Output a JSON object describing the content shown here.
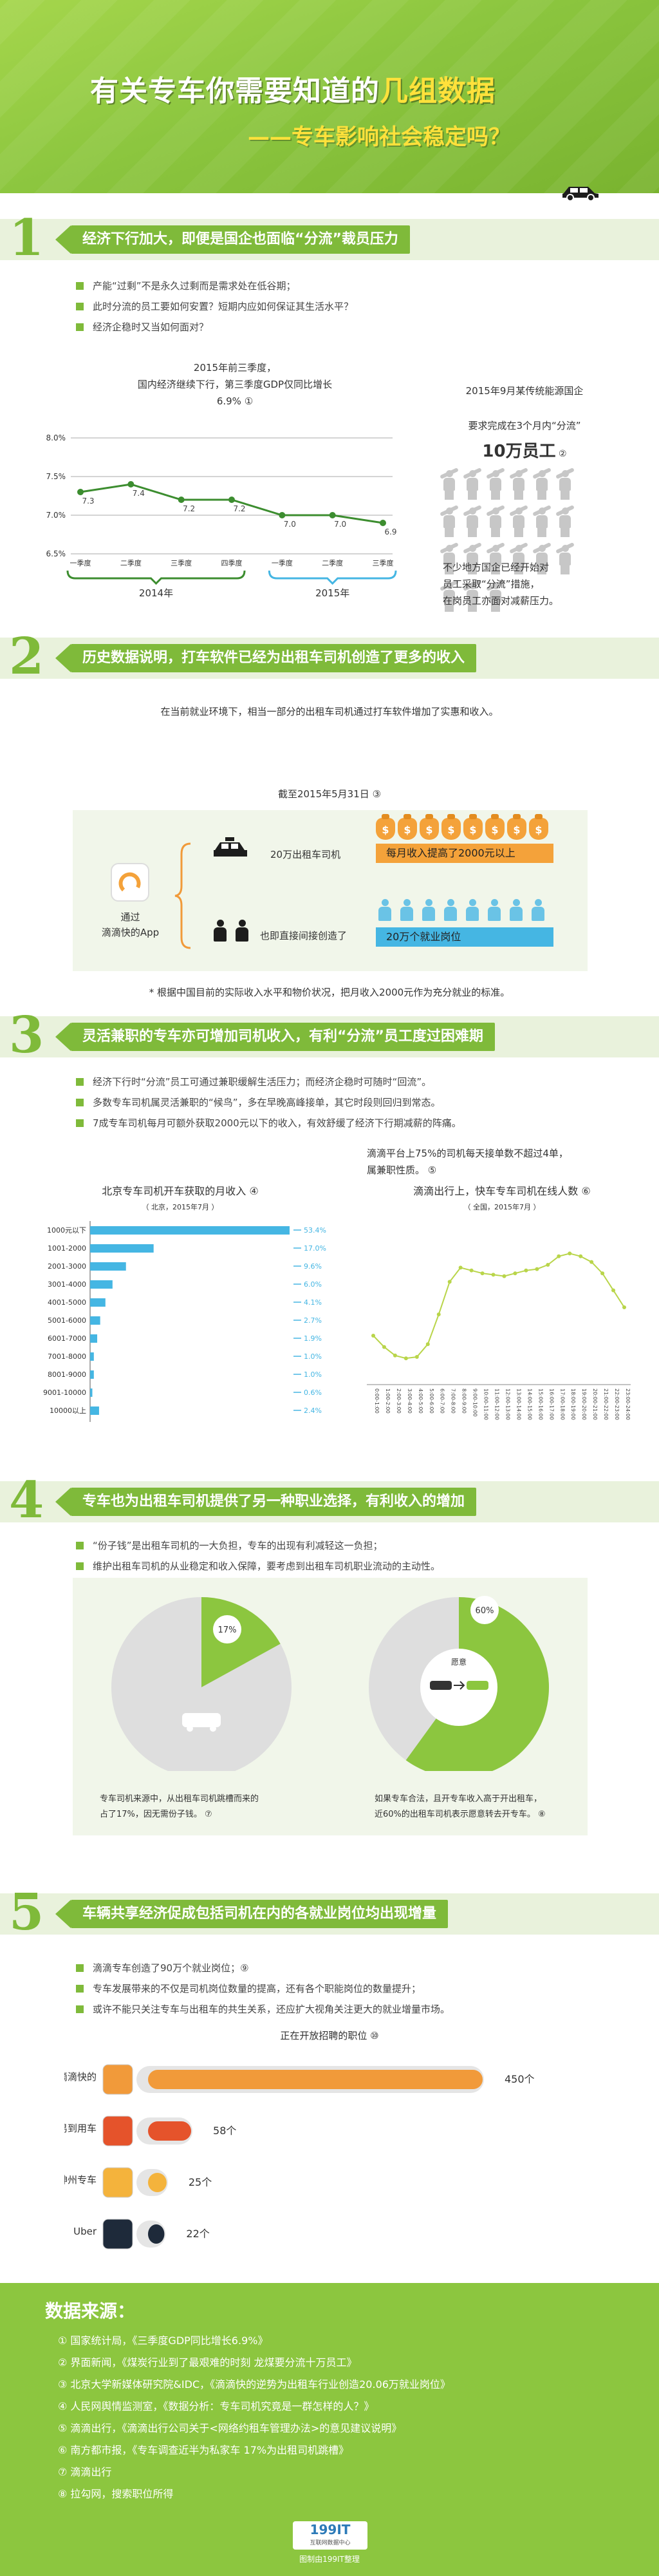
{
  "header": {
    "title_main": "有关专车你需要知道的",
    "title_highlight": "几组数据",
    "subtitle": "——专车影响社会稳定吗？"
  },
  "section1": {
    "num": "1",
    "title": "经济下行加大，即便是国企也面临“分流”裁员压力",
    "bullets": [
      "产能“过剩”不是永久过剩而是需求处在低谷期；",
      "此时分流的员工要如何安置？短期内应如何保证其生活水平？",
      "经济企稳时又当如何面对？"
    ],
    "chart_caption_line1": "2015年前三季度，",
    "chart_caption_line2": "国内经济继续下行，第三季度GDP仅同比增长6.9%",
    "right_title": "2015年9月某传统能源国企",
    "right_line1": "要求完成在3个月内“分流”",
    "right_big": "10万员工",
    "right_desc1": "不少地方国企已经开始对",
    "right_desc2": "员工采取“分流”措施，",
    "right_desc3": "在岗员工亦面对减薪压力。",
    "ref_mark": "①",
    "ref_mark2": "②"
  },
  "chart_data": {
    "type": "line",
    "categories": [
      "一季度",
      "二季度",
      "三季度",
      "四季度",
      "一季度",
      "二季度",
      "三季度"
    ],
    "groups": [
      "2014年",
      "2015年"
    ],
    "values": [
      7.3,
      7.4,
      7.2,
      7.2,
      7.0,
      7.0,
      6.9
    ],
    "labels": [
      "7.3",
      "7.4",
      "7.2",
      "7.2",
      "7.0",
      "7.0",
      "6.9"
    ],
    "yticks": [
      "8.0%",
      "7.5%",
      "7.0%",
      "6.5%"
    ],
    "ylim": [
      6.5,
      8.0
    ],
    "color": "#3c8d2f"
  },
  "section2": {
    "num": "2",
    "title": "历史数据说明，打车软件已经为出租车司机创造了更多的收入",
    "intro": "在当前就业环境下，相当一部分的出租车司机通过打车软件增加了实惠和收入。",
    "date": "截至2015年5月31日",
    "date_mark": "③",
    "app_label1": "通过",
    "app_label2": "滴滴快的App",
    "drivers_label": "20万出租车司机",
    "income_label": "每月收入提高了2000元以上",
    "jobs_label": "也即直接间接创造了",
    "jobs_value": "20万个就业岗位",
    "footnote": "* 根据中国目前的实际收入水平和物价状况，把月收入2000元作为充分就业的标准。"
  },
  "section3": {
    "num": "3",
    "title": "灵活兼职的专车亦可增加司机收入，有利“分流”员工度过困难期",
    "bullets": [
      "经济下行时“分流”员工可通过兼职缓解生活压力；而经济企稳时可随时“回流”。",
      "多数专车司机属灵活兼职的“候鸟”，多在早晚高峰接单，其它时段则回归到常态。",
      "7成专车司机每月可额外获取2000元以下的收入，有效舒缓了经济下行期减薪的阵痛。"
    ],
    "bar_title": "北京专车司机开车获取的月收入",
    "bar_title_mark": "④",
    "bar_sub": "（ 北京，2015年7月 ）",
    "bar_rows": [
      {
        "label": "1000元以下",
        "value": 53.4,
        "text": "53.4%"
      },
      {
        "label": "1001-2000",
        "value": 17.0,
        "text": "17.0%"
      },
      {
        "label": "2001-3000",
        "value": 9.6,
        "text": "9.6%"
      },
      {
        "label": "3001-4000",
        "value": 6.0,
        "text": "6.0%"
      },
      {
        "label": "4001-5000",
        "value": 4.1,
        "text": "4.1%"
      },
      {
        "label": "5001-6000",
        "value": 2.7,
        "text": "2.7%"
      },
      {
        "label": "6001-7000",
        "value": 1.9,
        "text": "1.9%"
      },
      {
        "label": "7001-8000",
        "value": 1.0,
        "text": "1.0%"
      },
      {
        "label": "8001-9000",
        "value": 1.0,
        "text": "1.0%"
      },
      {
        "label": "9001-10000",
        "value": 0.6,
        "text": "0.6%"
      },
      {
        "label": "10000以上",
        "value": 2.4,
        "text": "2.4%"
      }
    ],
    "right_note1": "滴滴平台上75%的司机每天接单数不超过4单，",
    "right_note2": "属兼职性质。",
    "right_note_mark": "⑤",
    "line_title": "滴滴出行上，快车专车司机在线人数",
    "line_title_mark": "⑥",
    "line_sub": "（ 全国，2015年7月 ）",
    "line_x": [
      "0:00-1:00",
      "1:00-2:00",
      "2:00-3:00",
      "3:00-4:00",
      "4:00-5:00",
      "5:00-6:00",
      "6:00-7:00",
      "7:00-8:00",
      "8:00-9:00",
      "9:00-10:00",
      "10:00-11:00",
      "11:00-12:00",
      "12:00-13:00",
      "13:00-14:00",
      "14:00-15:00",
      "15:00-16:00",
      "16:00-17:00",
      "17:00-18:00",
      "18:00-19:00",
      "19:00-20:00",
      "20:00-21:00",
      "21:00-22:00",
      "22:00-23:00",
      "23:00-24:00"
    ],
    "line_values": [
      30,
      22,
      16,
      14,
      15,
      24,
      45,
      68,
      78,
      76,
      74,
      73,
      72,
      74,
      76,
      77,
      80,
      86,
      88,
      86,
      82,
      74,
      62,
      50
    ]
  },
  "section4": {
    "num": "4",
    "title": "专车也为出租车司机提供了另一种职业选择，有利收入的增加",
    "bullets": [
      "“份子钱”是出租车司机的一大负担，专车的出现有利减轻这一负担；",
      "维护出租车司机的从业稳定和收入保障，要考虑到出租车司机职业流动的主动性。"
    ],
    "pie1_pct": 17,
    "pie1_label": "17%",
    "pie1_caption1": "专车司机来源中，从出租车司机跳槽而来的",
    "pie1_caption2": "占了17%，因无需份子钱。",
    "pie1_mark": "⑦",
    "pie2_pct": 60,
    "pie2_label": "60%",
    "pie2_inner": "愿意",
    "pie2_caption1": "如果专车合法，且开专车收入高于开出租车，",
    "pie2_caption2": "近60%的出租车司机表示愿意转去开专车。",
    "pie2_mark": "⑧"
  },
  "section5": {
    "num": "5",
    "title": "车辆共享经济促成包括司机在内的各就业岗位均出现增量",
    "bullets": [
      "滴滴专车创造了90万个就业岗位；",
      "专车发展带来的不仅是司机岗位数量的提高，还有各个职能岗位的数量提升；",
      "或许不能只关注专车与出租车的共生关系，还应扩大视角关注更大的就业增量市场。"
    ],
    "bullet_mark": "⑨",
    "hbar_title": "正在开放招聘的职位",
    "hbar_title_mark": "⑩",
    "companies": [
      {
        "name": "滴滴快的",
        "value": 450,
        "text": "450个",
        "color": "#f19a3a"
      },
      {
        "name": "易到用车",
        "value": 58,
        "text": "58个",
        "color": "#e5532b"
      },
      {
        "name": "神州专车",
        "value": 25,
        "text": "25个",
        "color": "#f4b33c"
      },
      {
        "name": "Uber",
        "value": 22,
        "text": "22个",
        "color": "#1e2a3a"
      }
    ]
  },
  "footer": {
    "title": "数据来源：",
    "sources": [
      "① 国家统计局，《三季度GDP同比增长6.9%》",
      "② 界面新闻，《煤炭行业到了最艰难的时刻 龙煤要分流十万员工》",
      "③ 北京大学新媒体研究院&IDC，《滴滴快的逆势为出租车行业创造20.06万就业岗位》",
      "④ 人民网舆情监测室，《数据分析：专车司机究竟是一群怎样的人？》",
      "⑤ 滴滴出行，《滴滴出行公司关于<网络约租车管理办法>的意见建议说明》",
      "⑥ 南方都市报，《专车调查近半为私家车 17%为出租司机跳槽》",
      "⑦ 滴滴出行",
      "⑧ 拉勾网，搜索职位所得"
    ],
    "brand": "199IT",
    "brand_sub": "互联网数据中心",
    "credit": "图制由199IT整理"
  }
}
